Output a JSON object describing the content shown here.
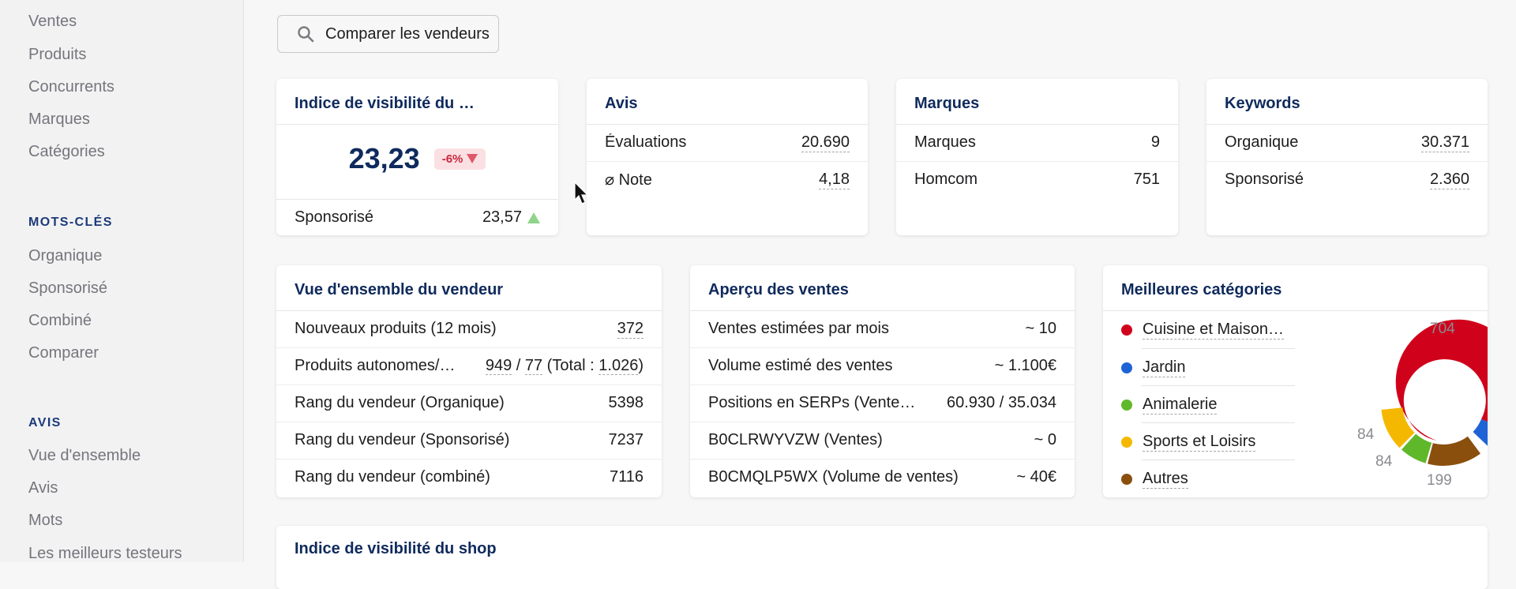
{
  "sidebar": {
    "top_items": [
      "Ventes",
      "Produits",
      "Concurrents",
      "Marques",
      "Catégories"
    ],
    "keywords_heading": "MOTS-CLÉS",
    "keywords_items": [
      "Organique",
      "Sponsorisé",
      "Combiné",
      "Comparer"
    ],
    "reviews_heading": "AVIS",
    "reviews_items": [
      "Vue d'ensemble",
      "Avis",
      "Mots",
      "Les meilleurs testeurs"
    ]
  },
  "compare_button": {
    "label": "Comparer les vendeurs",
    "icon": "search-icon"
  },
  "visibility_card": {
    "title": "Indice de visibilité du …",
    "value": "23,23",
    "change": "-6%",
    "sponsored_label": "Sponsorisé",
    "sponsored_value": "23,57"
  },
  "reviews_card": {
    "title": "Avis",
    "rows": [
      {
        "label": "Évaluations",
        "value": "20.690"
      },
      {
        "label": "⌀ Note",
        "value": "4,18"
      }
    ]
  },
  "brands_card": {
    "title": "Marques",
    "rows": [
      {
        "label": "Marques",
        "value": "9"
      },
      {
        "label": "Homcom",
        "value": "751"
      }
    ]
  },
  "keywords_card": {
    "title": "Keywords",
    "rows": [
      {
        "label": "Organique",
        "value": "30.371"
      },
      {
        "label": "Sponsorisé",
        "value": "2.360"
      }
    ]
  },
  "seller_overview": {
    "title": "Vue d'ensemble du vendeur",
    "rows": [
      {
        "label": "Nouveaux produits (12 mois)",
        "value": "372"
      },
      {
        "label": "Produits autonomes/…",
        "value_a": "949",
        "sep": " / ",
        "value_b": "77",
        "total": " (Total : ",
        "value_c": "1.026",
        "end": ")"
      },
      {
        "label": "Rang du vendeur (Organique)",
        "value": "5398"
      },
      {
        "label": "Rang du vendeur (Sponsorisé)",
        "value": "7237"
      },
      {
        "label": "Rang du vendeur (combiné)",
        "value": "7116"
      }
    ]
  },
  "sales_overview": {
    "title": "Aperçu des ventes",
    "rows": [
      {
        "label": "Ventes estimées par mois",
        "value": "~ 10"
      },
      {
        "label": "Volume estimé des ventes",
        "value": "~ 1.100€"
      },
      {
        "label": "Positions en SERPs (Ventes…",
        "value": "60.930 / 35.034"
      },
      {
        "label": "B0CLRWYVZW (Ventes)",
        "value": "~ 0"
      },
      {
        "label": "B0CMQLP5WX (Volume de ventes)",
        "value": "~ 40€"
      }
    ]
  },
  "top_categories": {
    "title": "Meilleures catégories",
    "items": [
      {
        "label": "Cuisine et Maison…",
        "color": "#d0021b"
      },
      {
        "label": "Jardin",
        "color": "#1e63d6"
      },
      {
        "label": "Animalerie",
        "color": "#5fb82a"
      },
      {
        "label": "Sports et Loisirs",
        "color": "#f5b800"
      },
      {
        "label": "Autres",
        "color": "#8b4f0d"
      }
    ],
    "donut_labels": [
      "704",
      "84",
      "84",
      "199"
    ]
  },
  "bottom_card": {
    "title": "Indice de visibilité du shop"
  },
  "colors": {
    "up": "#8fd48a",
    "down": "#e0566b",
    "title": "#0f2a5c"
  }
}
